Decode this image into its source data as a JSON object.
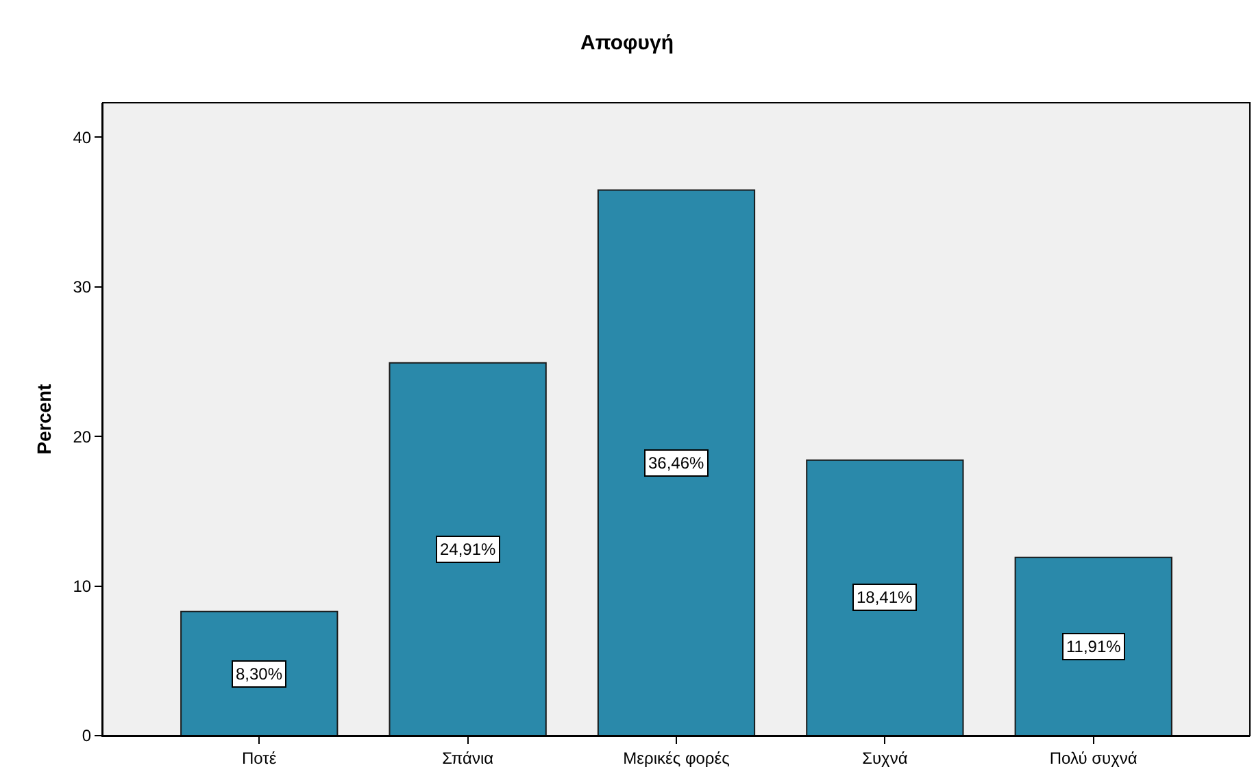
{
  "chart_data": {
    "type": "bar",
    "title": "Αποφυγή",
    "ylabel": "Percent",
    "categories": [
      "Ποτέ",
      "Σπάνια",
      "Μερικές φορές",
      "Συχνά",
      "Πολύ συχνά"
    ],
    "values": [
      8.3,
      24.91,
      36.46,
      18.41,
      11.91
    ],
    "value_labels": [
      "8,30%",
      "24,91%",
      "36,46%",
      "18,41%",
      "11,91%"
    ],
    "color": "#2a89aa",
    "ylim": [
      0,
      42.3
    ],
    "yticks": [
      0,
      10,
      20,
      30,
      40
    ],
    "grid": false,
    "legend": false
  }
}
